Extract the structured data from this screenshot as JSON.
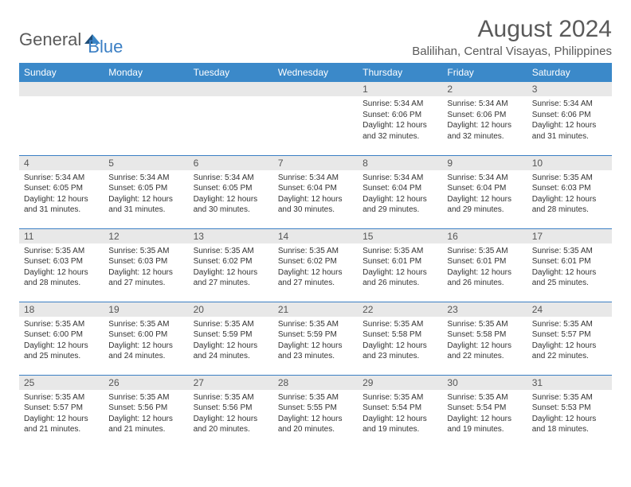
{
  "logo": {
    "text_general": "General",
    "text_blue": "Blue",
    "icon_color_dark": "#1f4e79",
    "icon_color_light": "#3b89c9"
  },
  "header": {
    "month_title": "August 2024",
    "location": "Balilihan, Central Visayas, Philippines"
  },
  "day_headers": [
    "Sunday",
    "Monday",
    "Tuesday",
    "Wednesday",
    "Thursday",
    "Friday",
    "Saturday"
  ],
  "colors": {
    "header_bg": "#3b89c9",
    "header_fg": "#ffffff",
    "daynum_bg": "#e8e8e8",
    "border": "#3b7fc4",
    "text": "#333333",
    "title_text": "#5a5a5a"
  },
  "weeks": [
    [
      {
        "num": "",
        "lines": []
      },
      {
        "num": "",
        "lines": []
      },
      {
        "num": "",
        "lines": []
      },
      {
        "num": "",
        "lines": []
      },
      {
        "num": "1",
        "lines": [
          "Sunrise: 5:34 AM",
          "Sunset: 6:06 PM",
          "Daylight: 12 hours and 32 minutes."
        ]
      },
      {
        "num": "2",
        "lines": [
          "Sunrise: 5:34 AM",
          "Sunset: 6:06 PM",
          "Daylight: 12 hours and 32 minutes."
        ]
      },
      {
        "num": "3",
        "lines": [
          "Sunrise: 5:34 AM",
          "Sunset: 6:06 PM",
          "Daylight: 12 hours and 31 minutes."
        ]
      }
    ],
    [
      {
        "num": "4",
        "lines": [
          "Sunrise: 5:34 AM",
          "Sunset: 6:05 PM",
          "Daylight: 12 hours and 31 minutes."
        ]
      },
      {
        "num": "5",
        "lines": [
          "Sunrise: 5:34 AM",
          "Sunset: 6:05 PM",
          "Daylight: 12 hours and 31 minutes."
        ]
      },
      {
        "num": "6",
        "lines": [
          "Sunrise: 5:34 AM",
          "Sunset: 6:05 PM",
          "Daylight: 12 hours and 30 minutes."
        ]
      },
      {
        "num": "7",
        "lines": [
          "Sunrise: 5:34 AM",
          "Sunset: 6:04 PM",
          "Daylight: 12 hours and 30 minutes."
        ]
      },
      {
        "num": "8",
        "lines": [
          "Sunrise: 5:34 AM",
          "Sunset: 6:04 PM",
          "Daylight: 12 hours and 29 minutes."
        ]
      },
      {
        "num": "9",
        "lines": [
          "Sunrise: 5:34 AM",
          "Sunset: 6:04 PM",
          "Daylight: 12 hours and 29 minutes."
        ]
      },
      {
        "num": "10",
        "lines": [
          "Sunrise: 5:35 AM",
          "Sunset: 6:03 PM",
          "Daylight: 12 hours and 28 minutes."
        ]
      }
    ],
    [
      {
        "num": "11",
        "lines": [
          "Sunrise: 5:35 AM",
          "Sunset: 6:03 PM",
          "Daylight: 12 hours and 28 minutes."
        ]
      },
      {
        "num": "12",
        "lines": [
          "Sunrise: 5:35 AM",
          "Sunset: 6:03 PM",
          "Daylight: 12 hours and 27 minutes."
        ]
      },
      {
        "num": "13",
        "lines": [
          "Sunrise: 5:35 AM",
          "Sunset: 6:02 PM",
          "Daylight: 12 hours and 27 minutes."
        ]
      },
      {
        "num": "14",
        "lines": [
          "Sunrise: 5:35 AM",
          "Sunset: 6:02 PM",
          "Daylight: 12 hours and 27 minutes."
        ]
      },
      {
        "num": "15",
        "lines": [
          "Sunrise: 5:35 AM",
          "Sunset: 6:01 PM",
          "Daylight: 12 hours and 26 minutes."
        ]
      },
      {
        "num": "16",
        "lines": [
          "Sunrise: 5:35 AM",
          "Sunset: 6:01 PM",
          "Daylight: 12 hours and 26 minutes."
        ]
      },
      {
        "num": "17",
        "lines": [
          "Sunrise: 5:35 AM",
          "Sunset: 6:01 PM",
          "Daylight: 12 hours and 25 minutes."
        ]
      }
    ],
    [
      {
        "num": "18",
        "lines": [
          "Sunrise: 5:35 AM",
          "Sunset: 6:00 PM",
          "Daylight: 12 hours and 25 minutes."
        ]
      },
      {
        "num": "19",
        "lines": [
          "Sunrise: 5:35 AM",
          "Sunset: 6:00 PM",
          "Daylight: 12 hours and 24 minutes."
        ]
      },
      {
        "num": "20",
        "lines": [
          "Sunrise: 5:35 AM",
          "Sunset: 5:59 PM",
          "Daylight: 12 hours and 24 minutes."
        ]
      },
      {
        "num": "21",
        "lines": [
          "Sunrise: 5:35 AM",
          "Sunset: 5:59 PM",
          "Daylight: 12 hours and 23 minutes."
        ]
      },
      {
        "num": "22",
        "lines": [
          "Sunrise: 5:35 AM",
          "Sunset: 5:58 PM",
          "Daylight: 12 hours and 23 minutes."
        ]
      },
      {
        "num": "23",
        "lines": [
          "Sunrise: 5:35 AM",
          "Sunset: 5:58 PM",
          "Daylight: 12 hours and 22 minutes."
        ]
      },
      {
        "num": "24",
        "lines": [
          "Sunrise: 5:35 AM",
          "Sunset: 5:57 PM",
          "Daylight: 12 hours and 22 minutes."
        ]
      }
    ],
    [
      {
        "num": "25",
        "lines": [
          "Sunrise: 5:35 AM",
          "Sunset: 5:57 PM",
          "Daylight: 12 hours and 21 minutes."
        ]
      },
      {
        "num": "26",
        "lines": [
          "Sunrise: 5:35 AM",
          "Sunset: 5:56 PM",
          "Daylight: 12 hours and 21 minutes."
        ]
      },
      {
        "num": "27",
        "lines": [
          "Sunrise: 5:35 AM",
          "Sunset: 5:56 PM",
          "Daylight: 12 hours and 20 minutes."
        ]
      },
      {
        "num": "28",
        "lines": [
          "Sunrise: 5:35 AM",
          "Sunset: 5:55 PM",
          "Daylight: 12 hours and 20 minutes."
        ]
      },
      {
        "num": "29",
        "lines": [
          "Sunrise: 5:35 AM",
          "Sunset: 5:54 PM",
          "Daylight: 12 hours and 19 minutes."
        ]
      },
      {
        "num": "30",
        "lines": [
          "Sunrise: 5:35 AM",
          "Sunset: 5:54 PM",
          "Daylight: 12 hours and 19 minutes."
        ]
      },
      {
        "num": "31",
        "lines": [
          "Sunrise: 5:35 AM",
          "Sunset: 5:53 PM",
          "Daylight: 12 hours and 18 minutes."
        ]
      }
    ]
  ]
}
